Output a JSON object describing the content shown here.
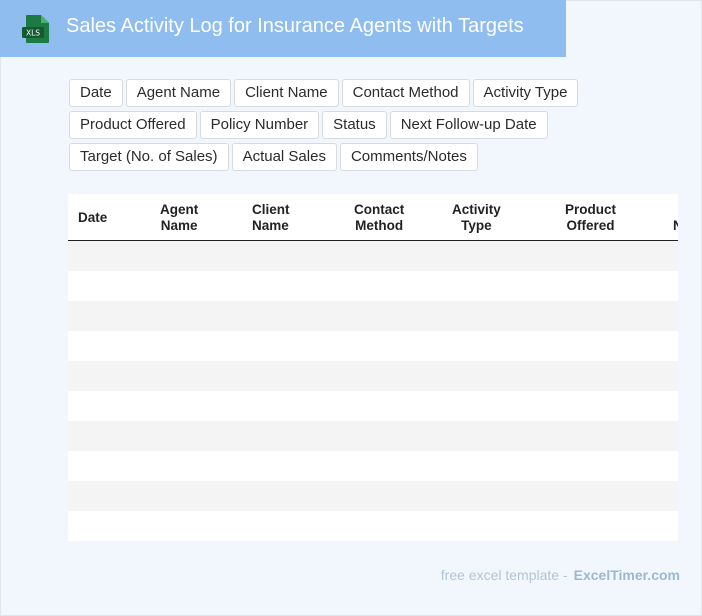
{
  "header": {
    "file_icon_label": "XLS",
    "title": "Sales Activity Log for Insurance Agents with Targets"
  },
  "fields": [
    "Date",
    "Agent Name",
    "Client Name",
    "Contact Method",
    "Activity Type",
    "Product Offered",
    "Policy Number",
    "Status",
    "Next Follow-up Date",
    "Target (No. of Sales)",
    "Actual Sales",
    "Comments/Notes"
  ],
  "table": {
    "columns": [
      "Date",
      "Agent\nName",
      "Client\nName",
      "Contact\nMethod",
      "Activity\nType",
      "Product\nOffered",
      "N"
    ],
    "row_count": 10
  },
  "footer": {
    "text": "free excel template -",
    "brand": "ExcelTimer.com"
  },
  "colors": {
    "title_bar": "#8fbdf0",
    "background": "#f2f7fe",
    "icon_green": "#1d7a45"
  }
}
